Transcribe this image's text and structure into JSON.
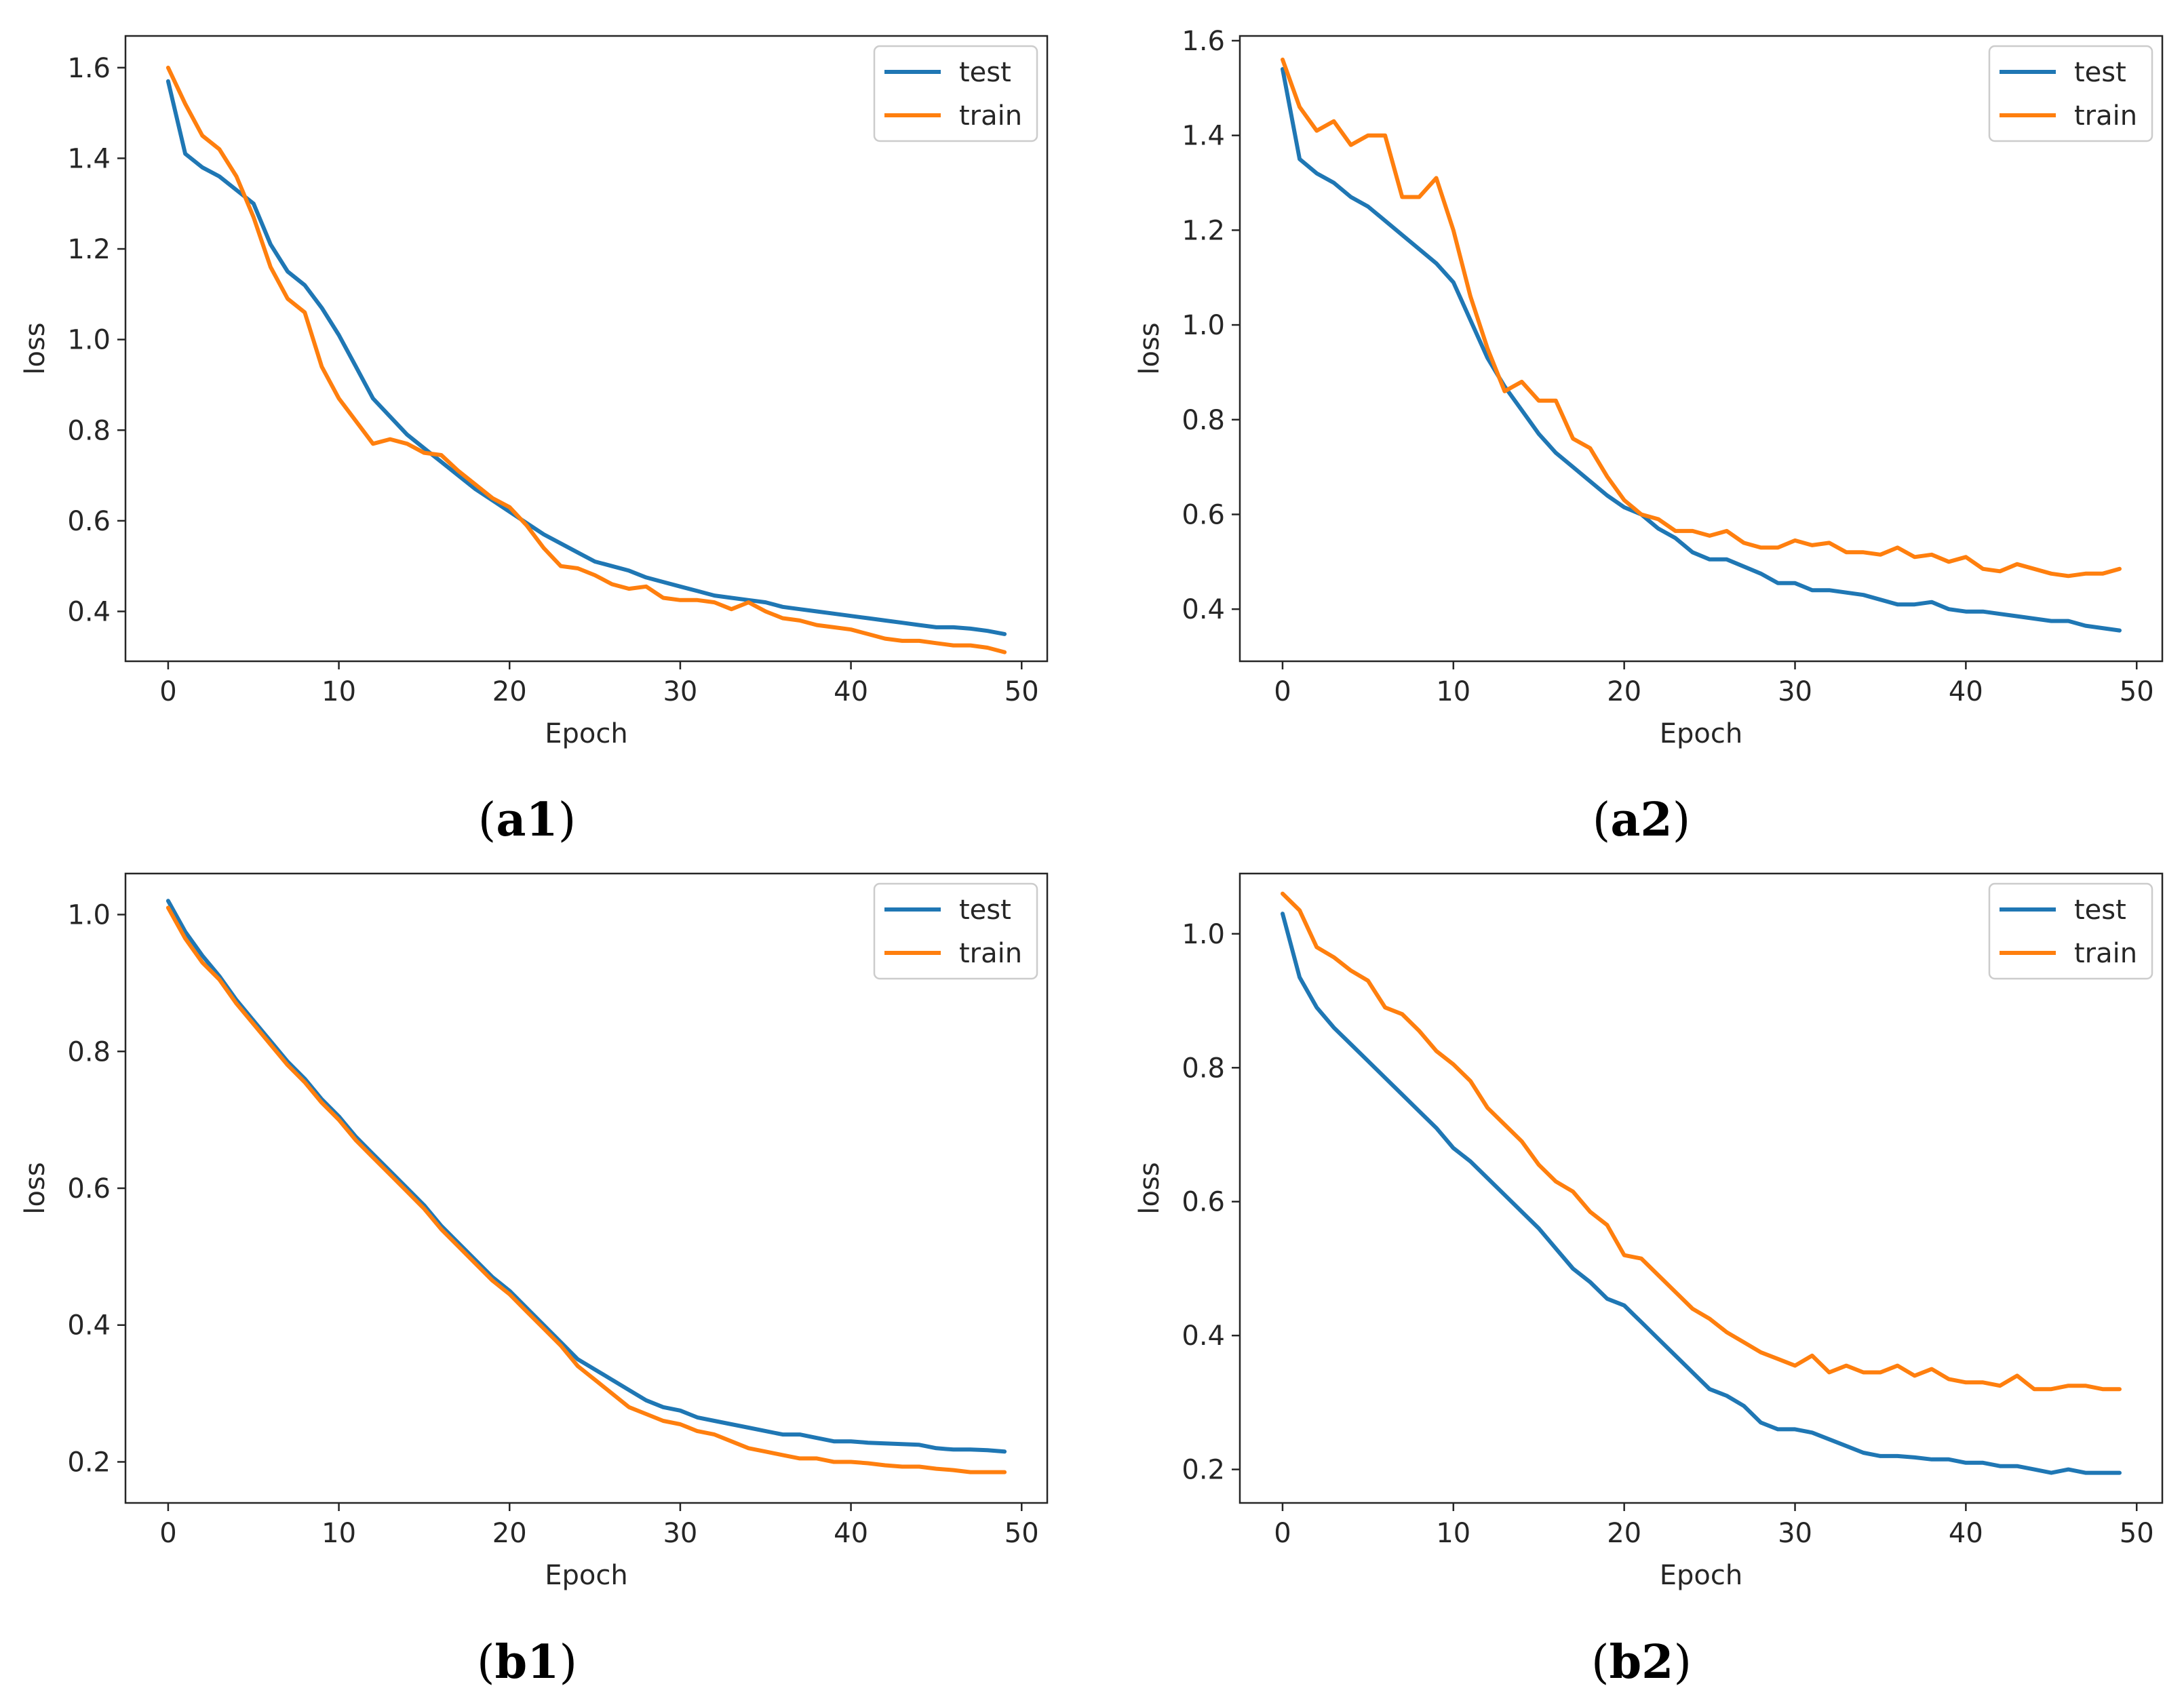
{
  "colors": {
    "test": "#1f77b4",
    "train": "#ff7f0e",
    "axis": "#262626",
    "legend_border": "#cccccc"
  },
  "chart_data": [
    {
      "type": "line",
      "panel": "a1",
      "caption": {
        "open": "(",
        "label": "a1",
        "close": ")"
      },
      "xlabel": "Epoch",
      "ylabel": "loss",
      "xlim": [
        -2.5,
        51.5
      ],
      "ylim": [
        0.29,
        1.67
      ],
      "xticks": [
        0,
        10,
        20,
        30,
        40,
        50
      ],
      "xtick_labels": [
        "0",
        "10",
        "20",
        "30",
        "40",
        "50"
      ],
      "yticks": [
        0.4,
        0.6,
        0.8,
        1.0,
        1.2,
        1.4,
        1.6
      ],
      "ytick_labels": [
        "0.4",
        "0.6",
        "0.8",
        "1.0",
        "1.2",
        "1.4",
        "1.6"
      ],
      "grid": false,
      "legend": "top-right",
      "series": [
        {
          "name": "test",
          "color": "#1f77b4",
          "values": [
            1.57,
            1.41,
            1.38,
            1.36,
            1.33,
            1.3,
            1.21,
            1.15,
            1.12,
            1.07,
            1.01,
            0.94,
            0.87,
            0.83,
            0.79,
            0.76,
            0.73,
            0.7,
            0.67,
            0.645,
            0.62,
            0.595,
            0.57,
            0.55,
            0.53,
            0.51,
            0.5,
            0.49,
            0.475,
            0.465,
            0.455,
            0.445,
            0.435,
            0.43,
            0.425,
            0.42,
            0.41,
            0.405,
            0.4,
            0.395,
            0.39,
            0.385,
            0.38,
            0.375,
            0.37,
            0.365,
            0.365,
            0.362,
            0.357,
            0.35
          ]
        },
        {
          "name": "train",
          "color": "#ff7f0e",
          "values": [
            1.6,
            1.52,
            1.45,
            1.42,
            1.36,
            1.27,
            1.16,
            1.09,
            1.06,
            0.94,
            0.87,
            0.82,
            0.77,
            0.78,
            0.77,
            0.75,
            0.745,
            0.71,
            0.68,
            0.65,
            0.63,
            0.59,
            0.54,
            0.5,
            0.495,
            0.48,
            0.46,
            0.45,
            0.455,
            0.43,
            0.425,
            0.425,
            0.42,
            0.405,
            0.42,
            0.4,
            0.385,
            0.38,
            0.37,
            0.365,
            0.36,
            0.35,
            0.34,
            0.335,
            0.335,
            0.33,
            0.325,
            0.325,
            0.32,
            0.31
          ]
        }
      ]
    },
    {
      "type": "line",
      "panel": "a2",
      "caption": {
        "open": "(",
        "label": "a2",
        "close": ")"
      },
      "xlabel": "Epoch",
      "ylabel": "loss",
      "xlim": [
        -2.5,
        51.5
      ],
      "ylim": [
        0.29,
        1.61
      ],
      "xticks": [
        0,
        10,
        20,
        30,
        40,
        50
      ],
      "xtick_labels": [
        "0",
        "10",
        "20",
        "30",
        "40",
        "50"
      ],
      "yticks": [
        0.4,
        0.6,
        0.8,
        1.0,
        1.2,
        1.4,
        1.6
      ],
      "ytick_labels": [
        "0.4",
        "0.6",
        "0.8",
        "1.0",
        "1.2",
        "1.4",
        "1.6"
      ],
      "grid": false,
      "legend": "top-right",
      "series": [
        {
          "name": "test",
          "color": "#1f77b4",
          "values": [
            1.54,
            1.35,
            1.32,
            1.3,
            1.27,
            1.25,
            1.22,
            1.19,
            1.16,
            1.13,
            1.09,
            1.01,
            0.93,
            0.87,
            0.82,
            0.77,
            0.73,
            0.7,
            0.67,
            0.64,
            0.615,
            0.6,
            0.57,
            0.55,
            0.52,
            0.505,
            0.505,
            0.49,
            0.475,
            0.455,
            0.455,
            0.44,
            0.44,
            0.435,
            0.43,
            0.42,
            0.41,
            0.41,
            0.415,
            0.4,
            0.395,
            0.395,
            0.39,
            0.385,
            0.38,
            0.375,
            0.375,
            0.365,
            0.36,
            0.355
          ]
        },
        {
          "name": "train",
          "color": "#ff7f0e",
          "values": [
            1.56,
            1.46,
            1.41,
            1.43,
            1.38,
            1.4,
            1.4,
            1.27,
            1.27,
            1.31,
            1.2,
            1.06,
            0.95,
            0.86,
            0.88,
            0.84,
            0.84,
            0.76,
            0.74,
            0.68,
            0.63,
            0.6,
            0.59,
            0.565,
            0.565,
            0.555,
            0.565,
            0.54,
            0.53,
            0.53,
            0.545,
            0.535,
            0.54,
            0.52,
            0.52,
            0.515,
            0.53,
            0.51,
            0.515,
            0.5,
            0.51,
            0.485,
            0.48,
            0.495,
            0.485,
            0.475,
            0.47,
            0.475,
            0.475,
            0.485
          ]
        }
      ]
    },
    {
      "type": "line",
      "panel": "b1",
      "caption": {
        "open": "(",
        "label": "b1",
        "close": ")"
      },
      "xlabel": "Epoch",
      "ylabel": "loss",
      "xlim": [
        -2.5,
        51.5
      ],
      "ylim": [
        0.14,
        1.06
      ],
      "xticks": [
        0,
        10,
        20,
        30,
        40,
        50
      ],
      "xtick_labels": [
        "0",
        "10",
        "20",
        "30",
        "40",
        "50"
      ],
      "yticks": [
        0.2,
        0.4,
        0.6,
        0.8,
        1.0
      ],
      "ytick_labels": [
        "0.2",
        "0.4",
        "0.6",
        "0.8",
        "1.0"
      ],
      "grid": false,
      "legend": "top-right",
      "series": [
        {
          "name": "test",
          "color": "#1f77b4",
          "values": [
            1.02,
            0.975,
            0.94,
            0.91,
            0.875,
            0.845,
            0.815,
            0.785,
            0.76,
            0.73,
            0.705,
            0.675,
            0.65,
            0.625,
            0.6,
            0.575,
            0.545,
            0.52,
            0.495,
            0.47,
            0.45,
            0.425,
            0.4,
            0.375,
            0.35,
            0.335,
            0.32,
            0.305,
            0.29,
            0.28,
            0.275,
            0.265,
            0.26,
            0.255,
            0.25,
            0.245,
            0.24,
            0.24,
            0.235,
            0.23,
            0.23,
            0.228,
            0.227,
            0.226,
            0.225,
            0.22,
            0.218,
            0.218,
            0.217,
            0.215
          ]
        },
        {
          "name": "train",
          "color": "#ff7f0e",
          "values": [
            1.01,
            0.965,
            0.93,
            0.905,
            0.87,
            0.84,
            0.81,
            0.78,
            0.755,
            0.725,
            0.7,
            0.67,
            0.645,
            0.62,
            0.595,
            0.57,
            0.54,
            0.515,
            0.49,
            0.465,
            0.445,
            0.42,
            0.395,
            0.37,
            0.34,
            0.32,
            0.3,
            0.28,
            0.27,
            0.26,
            0.255,
            0.245,
            0.24,
            0.23,
            0.22,
            0.215,
            0.21,
            0.205,
            0.205,
            0.2,
            0.2,
            0.198,
            0.195,
            0.193,
            0.193,
            0.19,
            0.188,
            0.185,
            0.185,
            0.185
          ]
        }
      ]
    },
    {
      "type": "line",
      "panel": "b2",
      "caption": {
        "open": "(",
        "label": "b2",
        "close": ")"
      },
      "xlabel": "Epoch",
      "ylabel": "loss",
      "xlim": [
        -2.5,
        51.5
      ],
      "ylim": [
        0.15,
        1.09
      ],
      "xticks": [
        0,
        10,
        20,
        30,
        40,
        50
      ],
      "xtick_labels": [
        "0",
        "10",
        "20",
        "30",
        "40",
        "50"
      ],
      "yticks": [
        0.2,
        0.4,
        0.6,
        0.8,
        1.0
      ],
      "ytick_labels": [
        "0.2",
        "0.4",
        "0.6",
        "0.8",
        "1.0"
      ],
      "grid": false,
      "legend": "top-right",
      "series": [
        {
          "name": "test",
          "color": "#1f77b4",
          "values": [
            1.03,
            0.935,
            0.89,
            0.86,
            0.835,
            0.81,
            0.785,
            0.76,
            0.735,
            0.71,
            0.68,
            0.66,
            0.635,
            0.61,
            0.585,
            0.56,
            0.53,
            0.5,
            0.48,
            0.455,
            0.445,
            0.42,
            0.395,
            0.37,
            0.345,
            0.32,
            0.31,
            0.295,
            0.27,
            0.26,
            0.26,
            0.255,
            0.245,
            0.235,
            0.225,
            0.22,
            0.22,
            0.218,
            0.215,
            0.215,
            0.21,
            0.21,
            0.205,
            0.205,
            0.2,
            0.195,
            0.2,
            0.195,
            0.195,
            0.195
          ]
        },
        {
          "name": "train",
          "color": "#ff7f0e",
          "values": [
            1.06,
            1.035,
            0.98,
            0.965,
            0.945,
            0.93,
            0.89,
            0.88,
            0.855,
            0.825,
            0.805,
            0.78,
            0.74,
            0.715,
            0.69,
            0.655,
            0.63,
            0.615,
            0.585,
            0.565,
            0.52,
            0.515,
            0.49,
            0.465,
            0.44,
            0.425,
            0.405,
            0.39,
            0.375,
            0.365,
            0.355,
            0.37,
            0.345,
            0.355,
            0.345,
            0.345,
            0.355,
            0.34,
            0.35,
            0.335,
            0.33,
            0.33,
            0.325,
            0.34,
            0.32,
            0.32,
            0.325,
            0.325,
            0.32,
            0.32
          ]
        }
      ]
    }
  ]
}
